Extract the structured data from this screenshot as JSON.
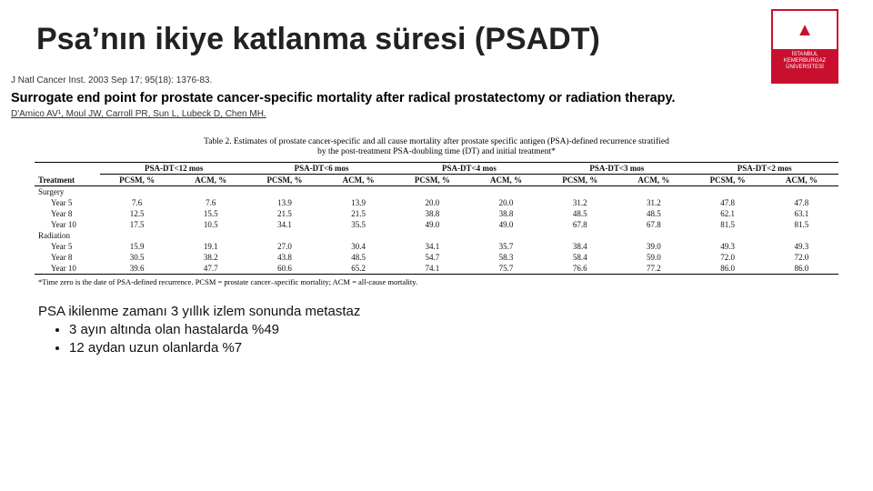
{
  "logo": {
    "text_top": "▲",
    "text_bottom": "İSTANBUL\nKEMERBURGAZ\nÜNİVERSİTESİ",
    "border_color": "#c8102e",
    "bg_color": "#c8102e"
  },
  "title": "Psa’nın ikiye katlanma süresi (PSADT)",
  "citation": {
    "journal": "J Natl Cancer Inst. 2003 Sep 17; 95(18): 1376-83.",
    "paper_title": "Surrogate end point for prostate cancer-specific mortality after radical prostatectomy or radiation therapy.",
    "authors": "D'Amico AV¹, Moul JW, Carroll PR, Sun L, Lubeck D, Chen MH."
  },
  "table": {
    "caption_line1": "Table 2. Estimates of prostate cancer-specific and all cause mortality after prostate specific antigen (PSA)-defined recurrence stratified",
    "caption_line2": "by the post-treatment PSA-doubling time (DT) and initial treatment*",
    "groups": [
      "PSA-DT<12 mos",
      "PSA-DT<6 mos",
      "PSA-DT<4 mos",
      "PSA-DT<3 mos",
      "PSA-DT<2 mos"
    ],
    "subheads": [
      "PCSM, %",
      "ACM, %"
    ],
    "treatment_label": "Treatment",
    "sections": [
      {
        "name": "Surgery",
        "rows": [
          {
            "label": "Year 5",
            "v": [
              [
                "7.6",
                "7.6"
              ],
              [
                "13.9",
                "13.9"
              ],
              [
                "20.0",
                "20.0"
              ],
              [
                "31.2",
                "31.2"
              ],
              [
                "47.8",
                "47.8"
              ]
            ]
          },
          {
            "label": "Year 8",
            "v": [
              [
                "12.5",
                "15.5"
              ],
              [
                "21.5",
                "21.5"
              ],
              [
                "38.8",
                "38.8"
              ],
              [
                "48.5",
                "48.5"
              ],
              [
                "62.1",
                "63.1"
              ]
            ]
          },
          {
            "label": "Year 10",
            "v": [
              [
                "17.5",
                "10.5"
              ],
              [
                "34.1",
                "35.5"
              ],
              [
                "49.0",
                "49.0"
              ],
              [
                "67.8",
                "67.8"
              ],
              [
                "81.5",
                "81.5"
              ]
            ]
          }
        ]
      },
      {
        "name": "Radiation",
        "rows": [
          {
            "label": "Year 5",
            "v": [
              [
                "15.9",
                "19.1"
              ],
              [
                "27.0",
                "30.4"
              ],
              [
                "34.1",
                "35.7"
              ],
              [
                "38.4",
                "39.0"
              ],
              [
                "49.3",
                "49.3"
              ]
            ]
          },
          {
            "label": "Year 8",
            "v": [
              [
                "30.5",
                "38.2"
              ],
              [
                "43.8",
                "48.5"
              ],
              [
                "54.7",
                "58.3"
              ],
              [
                "58.4",
                "59.0"
              ],
              [
                "72.0",
                "72.0"
              ]
            ]
          },
          {
            "label": "Year 10",
            "v": [
              [
                "39.6",
                "47.7"
              ],
              [
                "60.6",
                "65.2"
              ],
              [
                "74.1",
                "75.7"
              ],
              [
                "76.6",
                "77.2"
              ],
              [
                "86.0",
                "86.0"
              ]
            ]
          }
        ]
      }
    ],
    "footnote": "*Time zero is the date of PSA-defined recurrence. PCSM = prostate cancer–specific mortality; ACM = all-cause mortality."
  },
  "body": {
    "lead": "PSA ikilenme zamanı 3 yıllık izlem sonunda metastaz",
    "bullets": [
      "3 ayın altında olan hastalarda %49",
      "12 aydan uzun olanlarda %7"
    ]
  }
}
